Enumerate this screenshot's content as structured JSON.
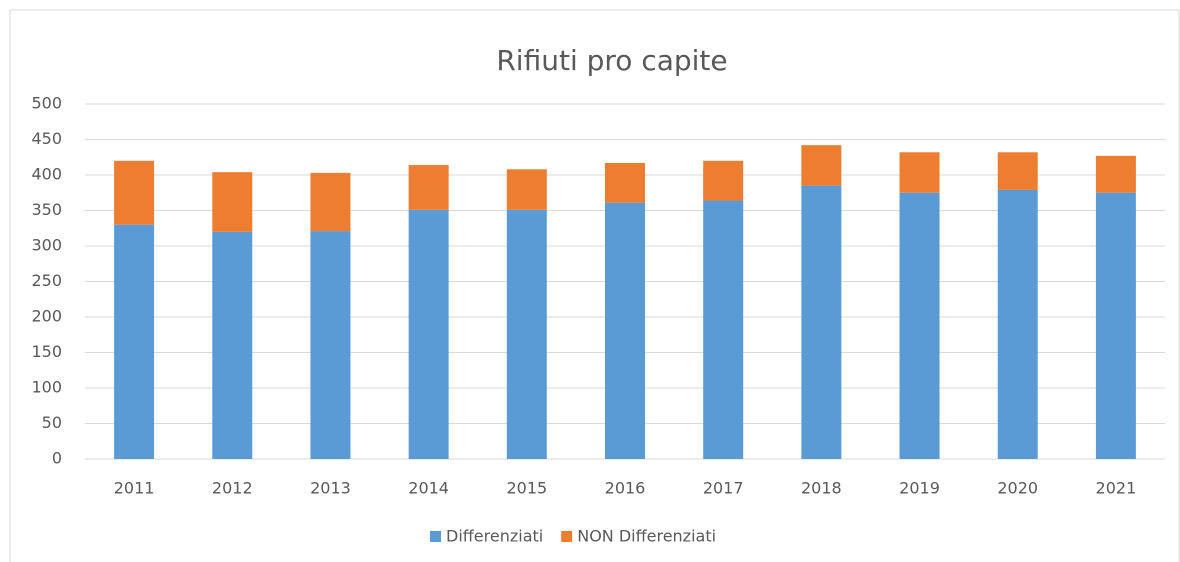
{
  "chart_data": {
    "type": "stacked_bar",
    "title": "Rifiuti pro capite",
    "categories": [
      "2011",
      "2012",
      "2013",
      "2014",
      "2015",
      "2016",
      "2017",
      "2018",
      "2019",
      "2020",
      "2021"
    ],
    "series": [
      {
        "name": "Differenziati",
        "color": "#5b9bd5",
        "values": [
          330,
          320,
          321,
          351,
          351,
          361,
          364,
          385,
          375,
          379,
          375
        ]
      },
      {
        "name": "NON Differenziati",
        "color": "#ed7d31",
        "values": [
          90,
          84,
          82,
          63,
          57,
          56,
          56,
          57,
          57,
          53,
          52
        ]
      }
    ],
    "ylim": [
      0,
      500
    ],
    "yticks": [
      0,
      50,
      100,
      150,
      200,
      250,
      300,
      350,
      400,
      450,
      500
    ],
    "grid": true,
    "legend": "bottom"
  }
}
